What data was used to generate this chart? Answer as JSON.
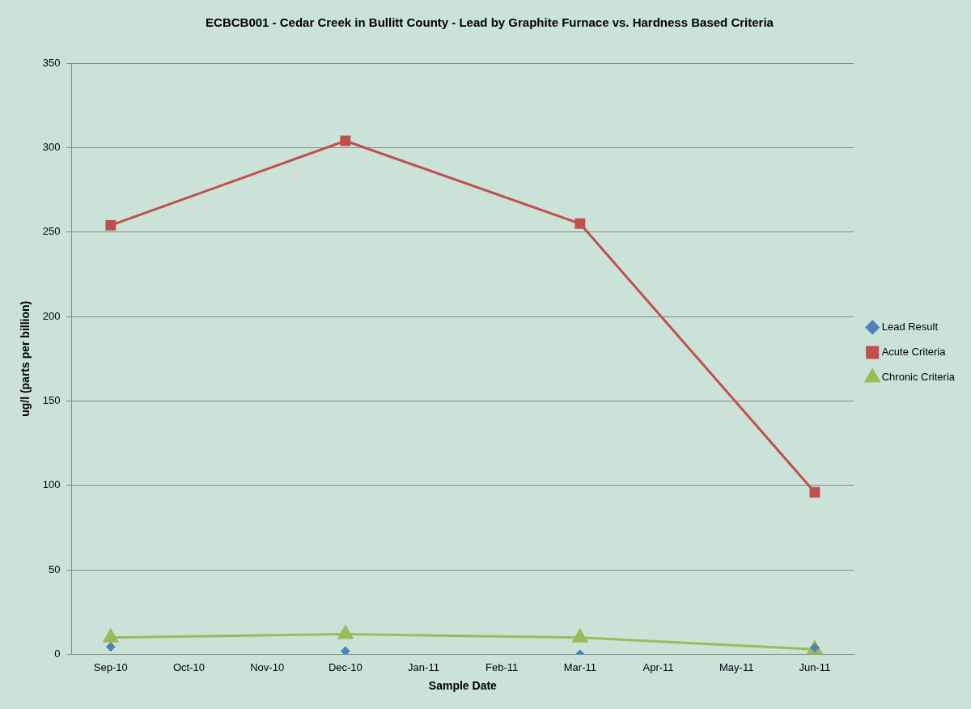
{
  "chart_data": {
    "type": "line",
    "title": "ECBCB001 - Cedar Creek in Bullitt County - Lead by Graphite Furnace vs. Hardness Based Criteria",
    "xlabel": "Sample Date",
    "ylabel": "ug/l (parts per billion)",
    "x": [
      "2010-09",
      "2010-12",
      "2011-03",
      "2011-06"
    ],
    "xlim": [
      "2010-08-16",
      "2011-06-16"
    ],
    "xticks": [
      {
        "value": "2010-09",
        "label": "Sep-10"
      },
      {
        "value": "2010-10",
        "label": "Oct-10"
      },
      {
        "value": "2010-11",
        "label": "Nov-10"
      },
      {
        "value": "2010-12",
        "label": "Dec-10"
      },
      {
        "value": "2011-01",
        "label": "Jan-11"
      },
      {
        "value": "2011-02",
        "label": "Feb-11"
      },
      {
        "value": "2011-03",
        "label": "Mar-11"
      },
      {
        "value": "2011-04",
        "label": "Apr-11"
      },
      {
        "value": "2011-05",
        "label": "May-11"
      },
      {
        "value": "2011-06",
        "label": "Jun-11"
      }
    ],
    "ylim": [
      0,
      350
    ],
    "yticks": [
      0,
      50,
      100,
      150,
      200,
      250,
      300,
      350
    ],
    "grid": "y",
    "legend": "right",
    "series": [
      {
        "name": "Lead Result",
        "type": "scatter",
        "marker": "diamond",
        "color": "#4f81bd",
        "values": [
          4.5,
          2,
          0,
          4
        ]
      },
      {
        "name": "Acute Criteria",
        "type": "line",
        "marker": "square",
        "color": "#c0504d",
        "values": [
          254,
          304,
          255,
          96
        ]
      },
      {
        "name": "Chronic Criteria",
        "type": "line",
        "marker": "triangle",
        "color": "#9bbb59",
        "values": [
          10,
          12,
          10,
          3
        ]
      }
    ]
  }
}
